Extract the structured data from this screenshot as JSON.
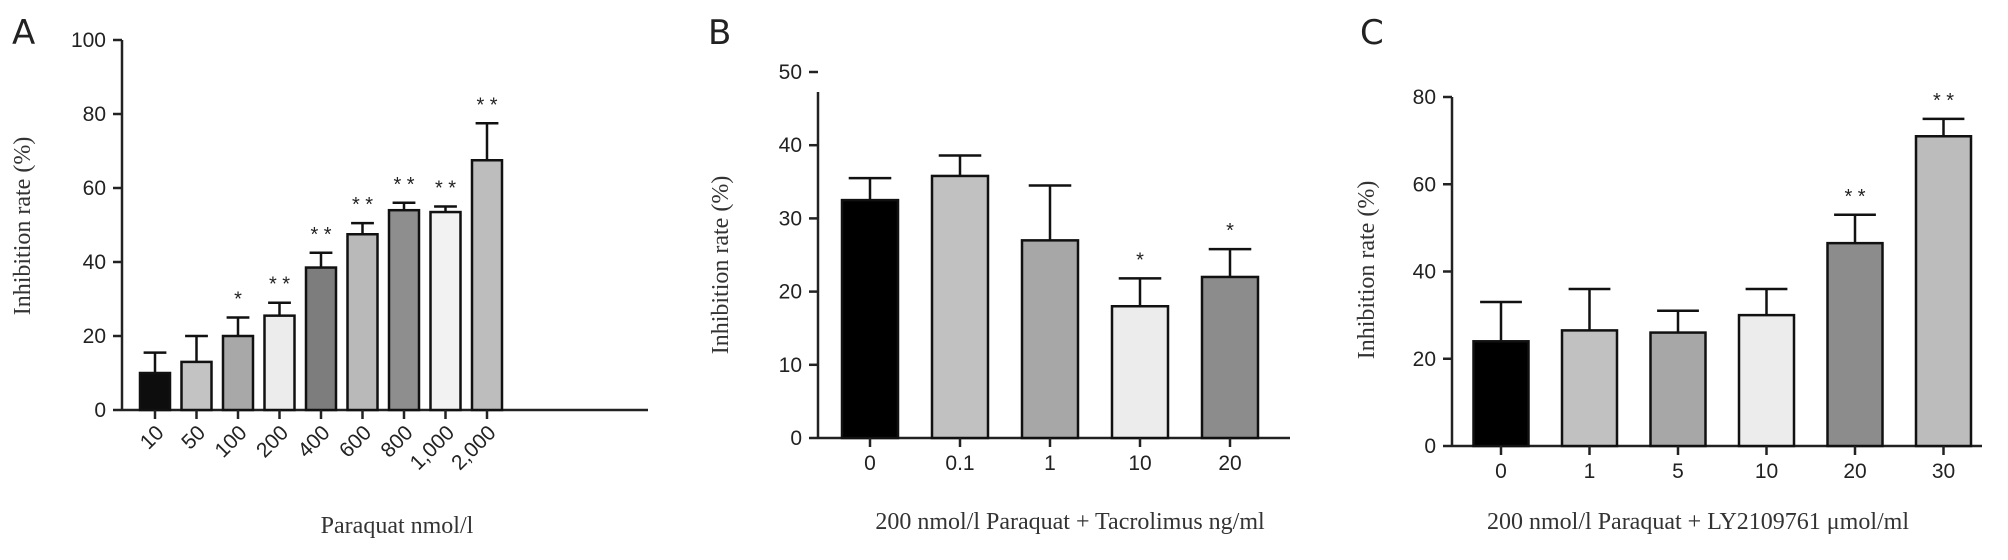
{
  "chart_data": [
    {
      "panel": "A",
      "type": "bar",
      "categories": [
        "10",
        "50",
        "100",
        "200",
        "400",
        "600",
        "800",
        "1,000",
        "2,000"
      ],
      "values": [
        10,
        13,
        20,
        25.5,
        38.5,
        47.5,
        54,
        53.5,
        67.5
      ],
      "errors": [
        5.5,
        7,
        5,
        3.5,
        4,
        3,
        2,
        1.5,
        10
      ],
      "significance": [
        "",
        "",
        "*",
        "* *",
        "* *",
        "* *",
        "* *",
        "* *",
        "* *"
      ],
      "colors": [
        "#0d0d0d",
        "#c3c3c3",
        "#a8a8a8",
        "#ececec",
        "#7d7d7d",
        "#b9b9b9",
        "#8e8e8e",
        "#f2f2f2",
        "#bdbdbd"
      ],
      "xlabel": "Paraquat nmol/l",
      "ylabel": "Inhibition rate (%)",
      "ylim": [
        0,
        100
      ],
      "yticks": [
        0,
        20,
        40,
        60,
        80,
        100
      ],
      "x_tick_rotation": -45
    },
    {
      "panel": "B",
      "type": "bar",
      "categories": [
        "0",
        "0.1",
        "1",
        "10",
        "20"
      ],
      "values": [
        32.5,
        35.8,
        27,
        18,
        22
      ],
      "errors": [
        3,
        2.8,
        7.5,
        3.8,
        3.8
      ],
      "significance": [
        "",
        "",
        "",
        "*",
        "*"
      ],
      "colors": [
        "#000000",
        "#c1c1c1",
        "#a7a7a7",
        "#ececec",
        "#8c8c8c"
      ],
      "xlabel": "200 nmol/l Paraquat + Tacrolimus ng/ml",
      "ylabel": "Inhibition rate (%)",
      "ylim": [
        0,
        50
      ],
      "yticks": [
        0,
        10,
        20,
        30,
        40,
        50
      ],
      "x_tick_rotation": 0
    },
    {
      "panel": "C",
      "type": "bar",
      "categories": [
        "0",
        "1",
        "5",
        "10",
        "20",
        "30"
      ],
      "values": [
        24,
        26.5,
        26,
        30,
        46.5,
        71
      ],
      "errors": [
        9,
        9.5,
        5,
        6,
        6.5,
        4
      ],
      "significance": [
        "",
        "",
        "",
        "",
        "* *",
        "* *"
      ],
      "colors": [
        "#000000",
        "#c1c1c1",
        "#a7a7a7",
        "#ececec",
        "#8c8c8c",
        "#bcbcbc"
      ],
      "xlabel": "200 nmol/l Paraquat + LY2109761 μmol/ml",
      "ylabel": "Inhibition rate (%)",
      "ylim": [
        0,
        80
      ],
      "yticks": [
        0,
        20,
        40,
        60,
        80
      ],
      "x_tick_rotation": 0
    }
  ]
}
